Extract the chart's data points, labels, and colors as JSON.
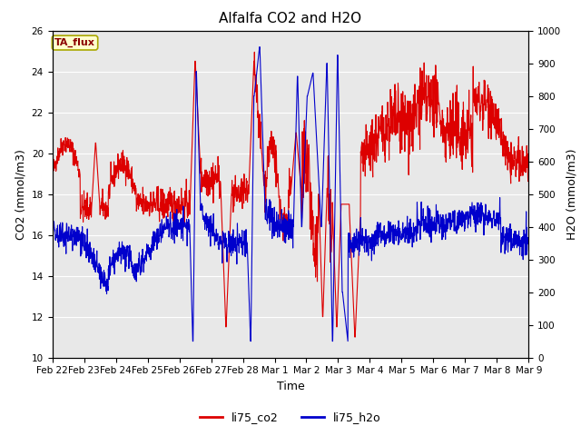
{
  "title": "Alfalfa CO2 and H2O",
  "xlabel": "Time",
  "ylabel_left": "CO2 (mmol/m3)",
  "ylabel_right": "H2O (mmol/m3)",
  "ylim_left": [
    10,
    26
  ],
  "ylim_right": [
    0,
    1000
  ],
  "yticks_left": [
    10,
    12,
    14,
    16,
    18,
    20,
    22,
    24,
    26
  ],
  "yticks_right": [
    0,
    100,
    200,
    300,
    400,
    500,
    600,
    700,
    800,
    900,
    1000
  ],
  "xtick_labels": [
    "Feb 22",
    "Feb 23",
    "Feb 24",
    "Feb 25",
    "Feb 26",
    "Feb 27",
    "Feb 28",
    "Mar 1",
    "Mar 2",
    "Mar 3",
    "Mar 4",
    "Mar 5",
    "Mar 6",
    "Mar 7",
    "Mar 8",
    "Mar 9"
  ],
  "annotation_text": "TA_flux",
  "annotation_bg": "#ffffcc",
  "annotation_border": "#aaa800",
  "co2_color": "#dd0000",
  "h2o_color": "#0000cc",
  "legend_entries": [
    "li75_co2",
    "li75_h2o"
  ],
  "plot_bg": "#e8e8e8",
  "fig_bg": "#ffffff",
  "linewidth": 0.8,
  "title_fontsize": 11,
  "axis_label_fontsize": 9,
  "tick_fontsize": 7.5,
  "legend_fontsize": 9
}
